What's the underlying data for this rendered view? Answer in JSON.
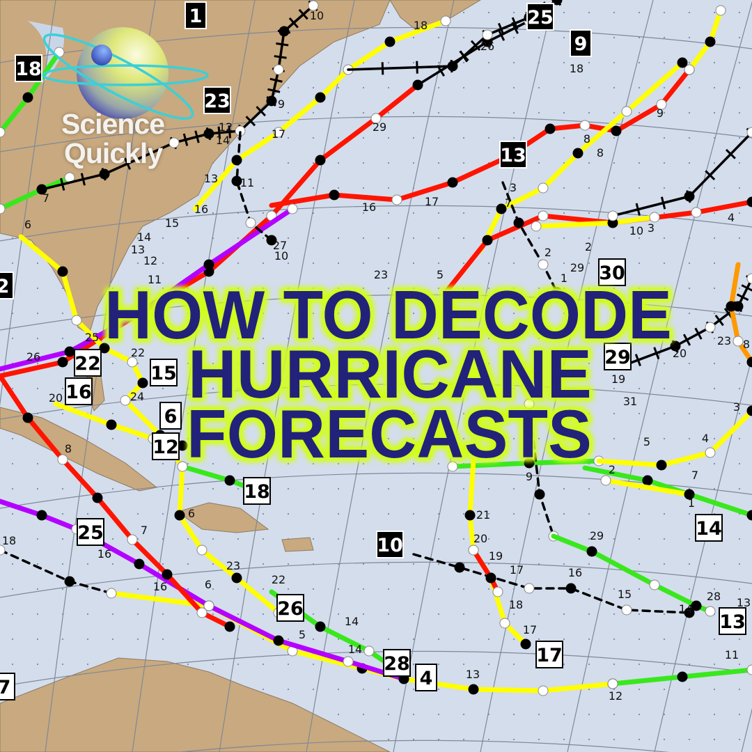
{
  "title": {
    "lines": [
      "HOW TO DECODE",
      "HURRICANE",
      "FORECASTS"
    ],
    "text_color": "#24207a",
    "glow_color": "#d2ff1a"
  },
  "logo": {
    "line1": "Science",
    "line2": "Quickly",
    "icon": "atom-sphere-icon"
  },
  "map": {
    "ocean_color": "#d3ddec",
    "land_color": "#c9a97f",
    "track_colors": {
      "depression": "#39e81c",
      "storm": "#ffff00",
      "hurricane": "#ff1400",
      "major": "#b400ff",
      "remnant": "#000000",
      "cat3": "#ff9900"
    },
    "storm_labels": [
      {
        "number": "1",
        "style": "black"
      },
      {
        "number": "18",
        "style": "black"
      },
      {
        "number": "23",
        "style": "black"
      },
      {
        "number": "25",
        "style": "black"
      },
      {
        "number": "9",
        "style": "black"
      },
      {
        "number": "13",
        "style": "black"
      },
      {
        "number": "10",
        "style": "black"
      },
      {
        "number": "2",
        "style": "black"
      },
      {
        "number": "30",
        "style": "white"
      },
      {
        "number": "29",
        "style": "white"
      },
      {
        "number": "15",
        "style": "white"
      },
      {
        "number": "22",
        "style": "white"
      },
      {
        "number": "16",
        "style": "white"
      },
      {
        "number": "6",
        "style": "white"
      },
      {
        "number": "12",
        "style": "white"
      },
      {
        "number": "18",
        "style": "white"
      },
      {
        "number": "25",
        "style": "white"
      },
      {
        "number": "26",
        "style": "white"
      },
      {
        "number": "28",
        "style": "white"
      },
      {
        "number": "4",
        "style": "white"
      },
      {
        "number": "17",
        "style": "white"
      },
      {
        "number": "13",
        "style": "white"
      },
      {
        "number": "14",
        "style": "white"
      },
      {
        "number": "7",
        "style": "white"
      }
    ],
    "day_labels": [
      "10",
      "18",
      "26",
      "18",
      "29",
      "9",
      "17",
      "12",
      "14",
      "13",
      "11",
      "7",
      "16",
      "15",
      "16",
      "17",
      "8",
      "8",
      "9",
      "3",
      "7",
      "14",
      "13",
      "12",
      "11",
      "6",
      "3",
      "4",
      "10",
      "2",
      "29",
      "23",
      "27",
      "10",
      "5",
      "25",
      "22",
      "24",
      "26",
      "20",
      "8",
      "16",
      "7",
      "6",
      "23",
      "22",
      "5",
      "14",
      "14",
      "13",
      "12",
      "11",
      "21",
      "20",
      "19",
      "17",
      "18",
      "17",
      "16",
      "15",
      "14",
      "28",
      "13",
      "29",
      "9",
      "2",
      "1",
      "7",
      "4",
      "5",
      "3",
      "2",
      "1",
      "20",
      "23",
      "8",
      "19",
      "31",
      "16",
      "18",
      "6"
    ]
  }
}
